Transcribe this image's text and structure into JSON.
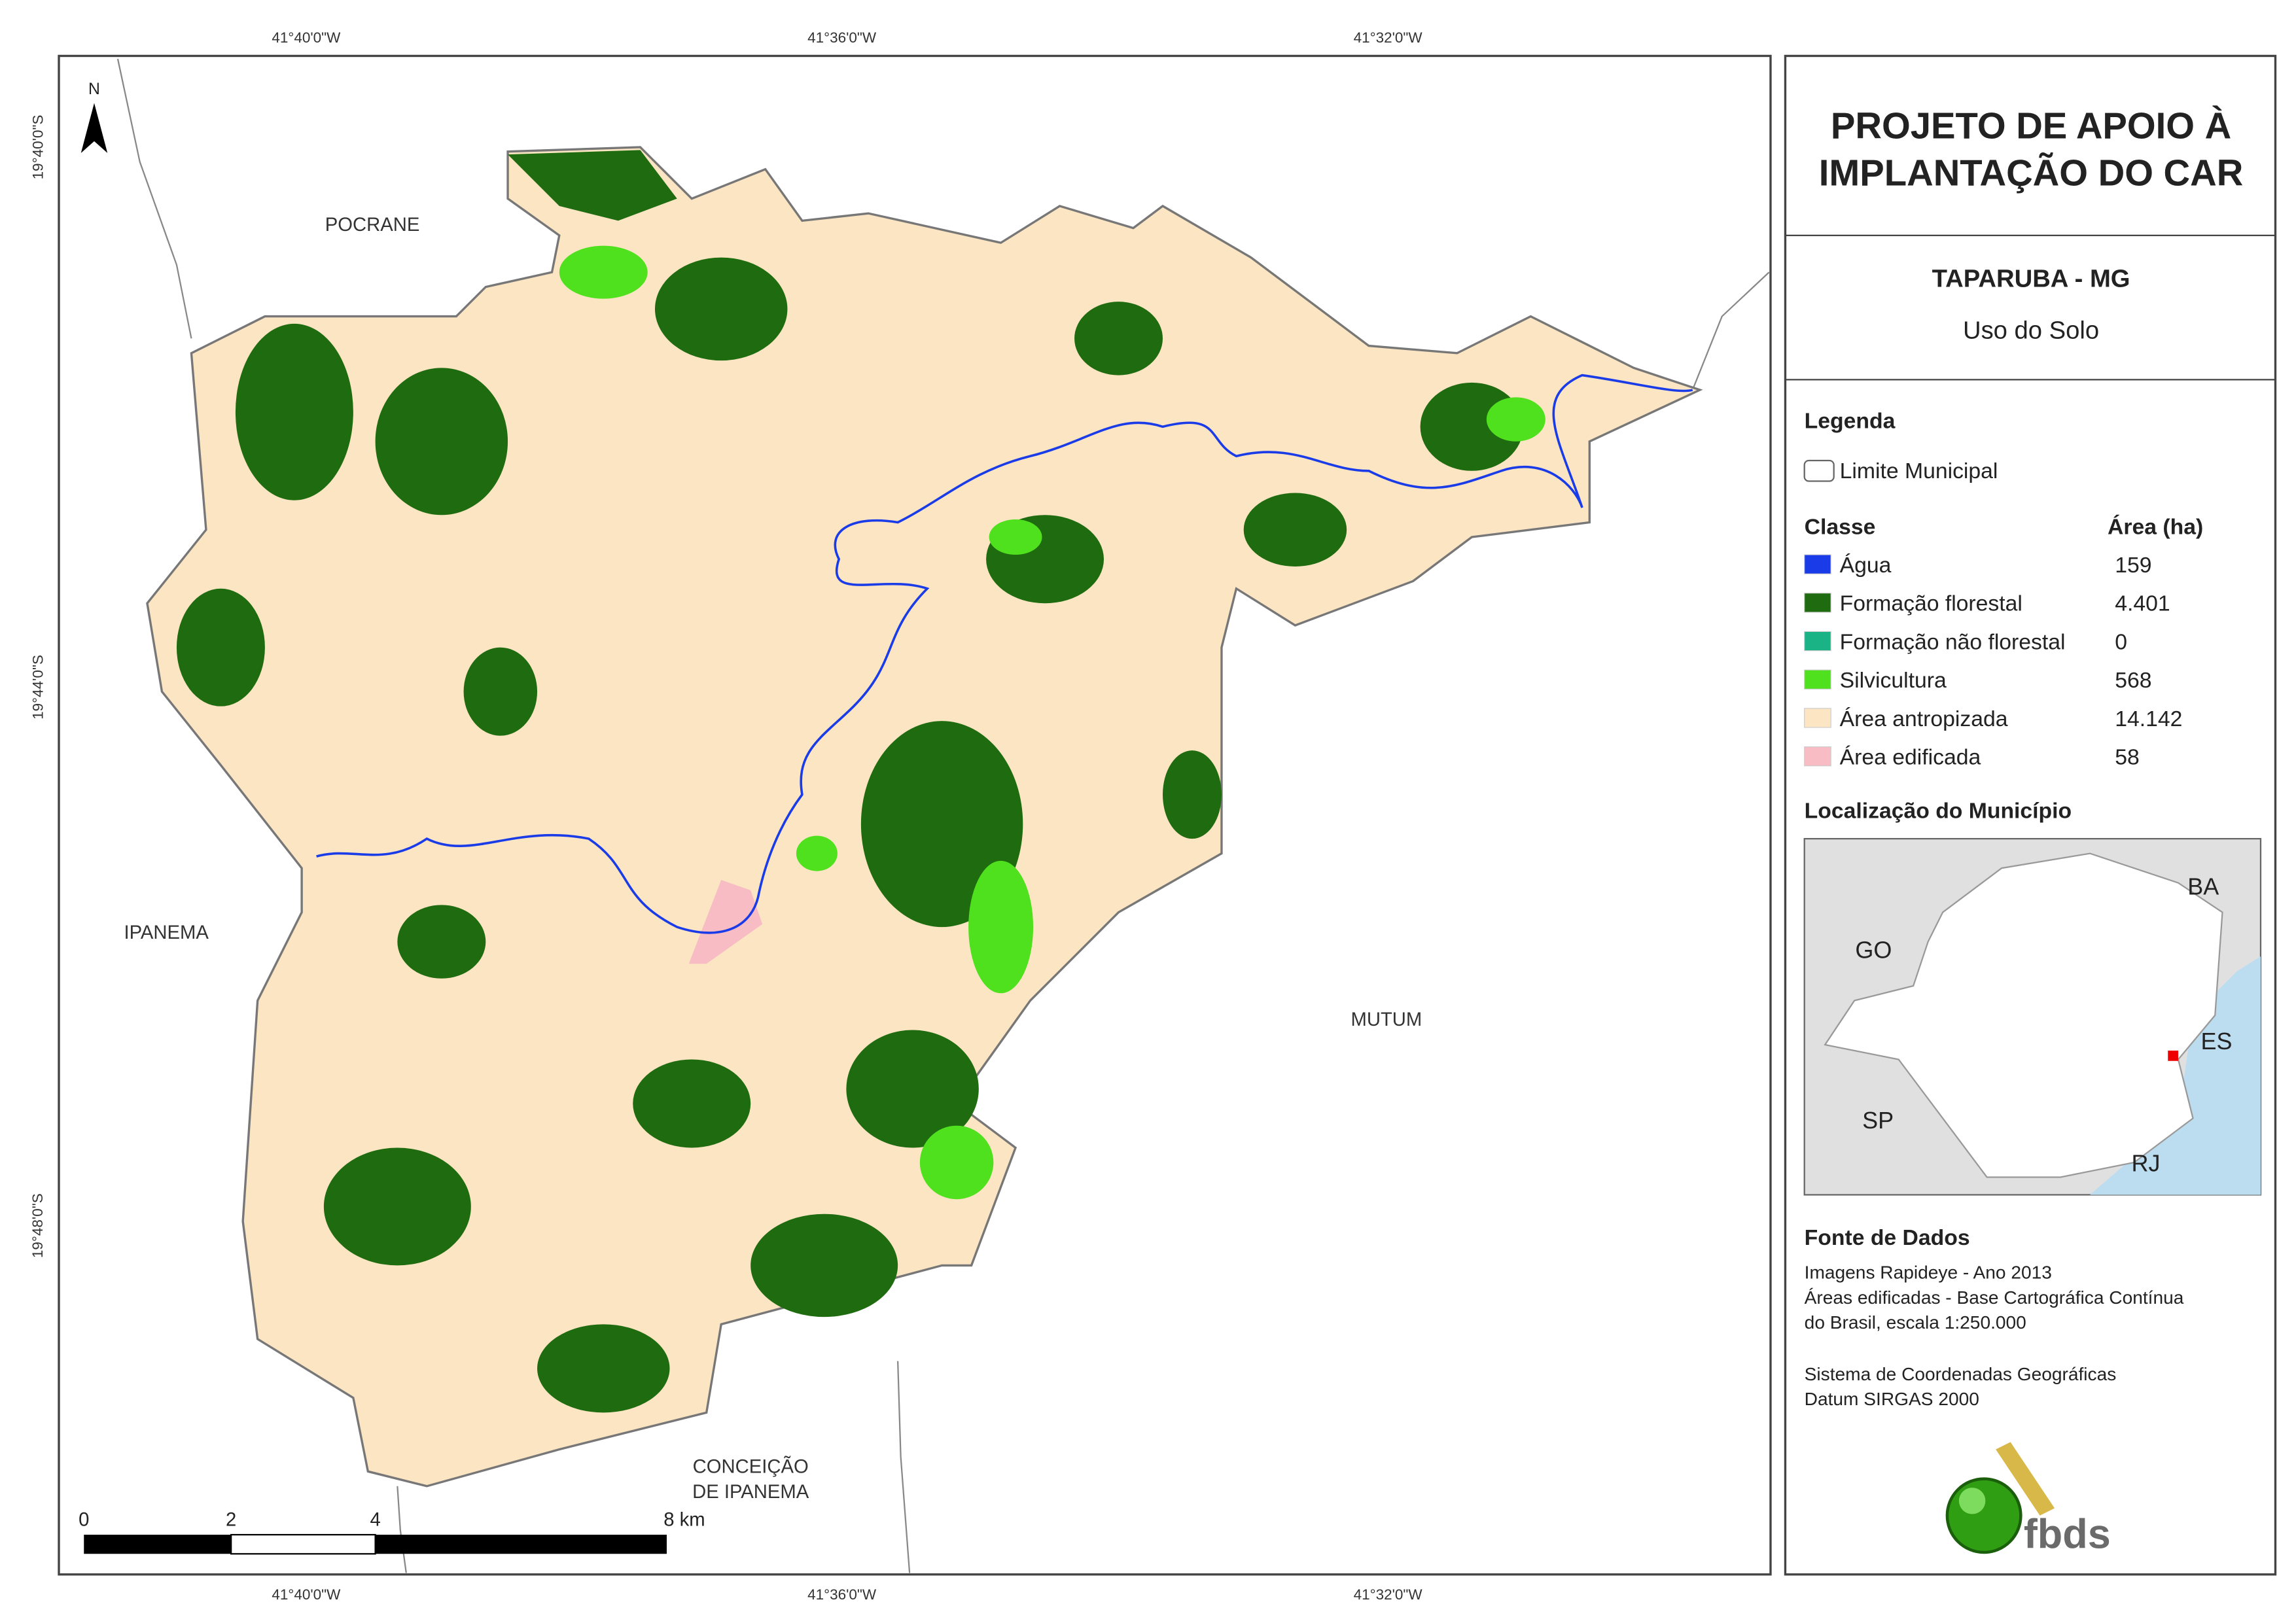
{
  "title_block": {
    "title_lines": [
      "PROJETO DE APOIO À",
      "IMPLANTAÇÃO DO CAR"
    ],
    "municipality": "TAPARUBA - MG",
    "subtitle": "Uso do Solo"
  },
  "legend": {
    "heading": "Legenda",
    "boundary": "Limite Municipal",
    "class_heading": "Classe",
    "area_heading": "Área (ha)",
    "items": [
      {
        "name": "Água",
        "area": "159",
        "color": "#1a3ce8"
      },
      {
        "name": "Formação florestal",
        "area": "4.401",
        "color": "#1f6b0f"
      },
      {
        "name": "Formação não florestal",
        "area": "0",
        "color": "#19b386"
      },
      {
        "name": "Silvicultura",
        "area": "568",
        "color": "#4fe01e"
      },
      {
        "name": "Área antropizada",
        "area": "14.142",
        "color": "#fbe5c3"
      },
      {
        "name": "Área edificada",
        "area": "58",
        "color": "#f7bcc4"
      }
    ]
  },
  "location": {
    "heading": "Localização do Município",
    "labels": [
      "BA",
      "GO",
      "ES",
      "SP",
      "RJ"
    ]
  },
  "sources": {
    "heading": "Fonte de Dados",
    "lines": [
      "Imagens Rapideye - Ano 2013",
      "Áreas edificadas - Base Cartográfica Contínua",
      "do Brasil, escala 1:250.000",
      "Sistema de Coordenadas Geográficas",
      "Datum SIRGAS 2000"
    ]
  },
  "map": {
    "north": "N",
    "places": [
      "POCRANE",
      "IPANEMA",
      "MUTUM",
      "CONCEIÇÃO",
      "DE IPANEMA"
    ],
    "grid_labels": {
      "top": [
        "41°40'0\"W",
        "41°36'0\"W",
        "41°32'0\"W"
      ],
      "bottom": [
        "41°40'0\"W",
        "41°36'0\"W",
        "41°32'0\"W"
      ],
      "left": [
        "19°40'0\"S",
        "19°44'0\"S",
        "19°48'0\"S"
      ]
    },
    "scale_bar": [
      "0",
      "2",
      "4",
      "8 km"
    ]
  },
  "logo": "fbds"
}
